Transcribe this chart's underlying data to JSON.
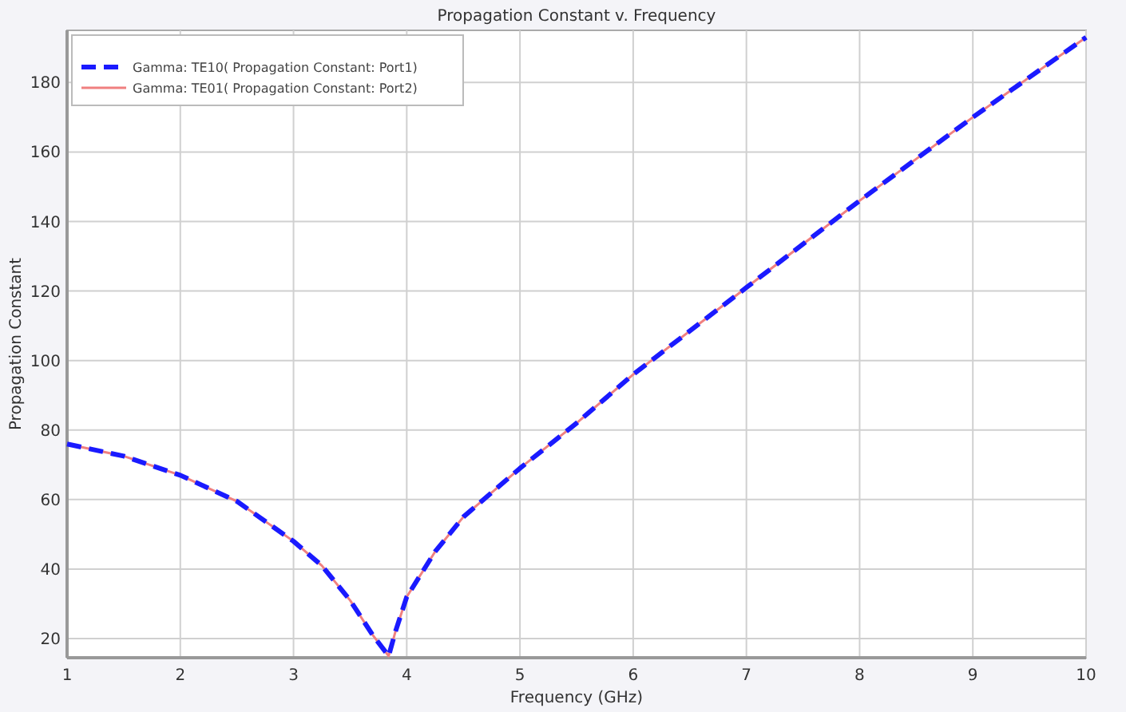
{
  "chart_data": {
    "type": "line",
    "title": "Propagation Constant v. Frequency",
    "xlabel": "Frequency (GHz)",
    "ylabel": "Propagation Constant",
    "x": [
      1,
      1.5,
      2,
      2.5,
      3,
      3.25,
      3.5,
      3.7,
      3.84,
      3.9,
      4,
      4.25,
      4.5,
      5,
      5.5,
      6,
      7,
      8,
      9,
      10
    ],
    "series": [
      {
        "name": "Gamma: TE10( Propagation Constant: Port1)",
        "color": "#1a1aff",
        "line_style": "dashed",
        "values": [
          76,
          72.5,
          67,
          59.5,
          48,
          41,
          31,
          21,
          15,
          22,
          32,
          45,
          55,
          69,
          82,
          96,
          121,
          146,
          170,
          193
        ]
      },
      {
        "name": "Gamma: TE01( Propagation Constant: Port2)",
        "color": "#f08080",
        "line_style": "solid",
        "values": [
          76,
          72.5,
          67,
          59.5,
          48,
          41,
          31,
          21,
          15,
          22,
          32,
          45,
          55,
          69,
          82,
          96,
          121,
          146,
          170,
          193
        ]
      }
    ],
    "xlim": [
      1,
      10
    ],
    "xticks": [
      1,
      2,
      3,
      4,
      5,
      6,
      7,
      8,
      9,
      10
    ],
    "ylim": [
      14.5,
      195
    ],
    "yticks": [
      20,
      40,
      60,
      80,
      100,
      120,
      140,
      160,
      180
    ],
    "grid": true,
    "legend": "top left"
  }
}
